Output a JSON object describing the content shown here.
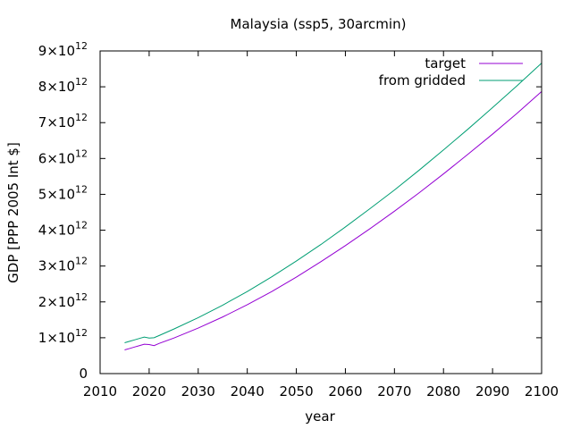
{
  "chart_data": {
    "type": "line",
    "title": "Malaysia (ssp5, 30arcmin)",
    "xlabel": "year",
    "ylabel": "GDP [PPP 2005 Int $]",
    "xlim": [
      2010,
      2100
    ],
    "ylim": [
      0,
      9000000000000.0
    ],
    "xticks": [
      2010,
      2020,
      2030,
      2040,
      2050,
      2060,
      2070,
      2080,
      2090,
      2100
    ],
    "yticks": [
      {
        "value": 0,
        "mantissa": "0",
        "exponent": ""
      },
      {
        "value": 1000000000000.0,
        "mantissa": "1×10",
        "exponent": "12"
      },
      {
        "value": 2000000000000.0,
        "mantissa": "2×10",
        "exponent": "12"
      },
      {
        "value": 3000000000000.0,
        "mantissa": "3×10",
        "exponent": "12"
      },
      {
        "value": 4000000000000.0,
        "mantissa": "4×10",
        "exponent": "12"
      },
      {
        "value": 5000000000000.0,
        "mantissa": "5×10",
        "exponent": "12"
      },
      {
        "value": 6000000000000.0,
        "mantissa": "6×10",
        "exponent": "12"
      },
      {
        "value": 7000000000000.0,
        "mantissa": "7×10",
        "exponent": "12"
      },
      {
        "value": 8000000000000.0,
        "mantissa": "8×10",
        "exponent": "12"
      },
      {
        "value": 9000000000000.0,
        "mantissa": "9×10",
        "exponent": "12"
      }
    ],
    "grid": false,
    "legend_position": "top-right",
    "x": [
      2015,
      2016,
      2017,
      2018,
      2019,
      2020,
      2021,
      2022,
      2025,
      2030,
      2035,
      2040,
      2045,
      2050,
      2055,
      2060,
      2065,
      2070,
      2075,
      2080,
      2085,
      2090,
      2095,
      2100
    ],
    "series": [
      {
        "name": "target",
        "color": "#9400d3",
        "values": [
          660000000000.0,
          700000000000.0,
          740000000000.0,
          780000000000.0,
          820000000000.0,
          810000000000.0,
          780000000000.0,
          840000000000.0,
          990000000000.0,
          1270000000000.0,
          1580000000000.0,
          1920000000000.0,
          2290000000000.0,
          2690000000000.0,
          3120000000000.0,
          3570000000000.0,
          4040000000000.0,
          4530000000000.0,
          5040000000000.0,
          5570000000000.0,
          6120000000000.0,
          6680000000000.0,
          7260000000000.0,
          7870000000000.0
        ]
      },
      {
        "name": "from gridded",
        "color": "#009e73",
        "values": [
          860000000000.0,
          900000000000.0,
          940000000000.0,
          980000000000.0,
          1020000000000.0,
          990000000000.0,
          1000000000000.0,
          1060000000000.0,
          1240000000000.0,
          1560000000000.0,
          1910000000000.0,
          2290000000000.0,
          2700000000000.0,
          3140000000000.0,
          3600000000000.0,
          4090000000000.0,
          4600000000000.0,
          5120000000000.0,
          5670000000000.0,
          6240000000000.0,
          6820000000000.0,
          7420000000000.0,
          8030000000000.0,
          8660000000000.0
        ]
      }
    ]
  }
}
